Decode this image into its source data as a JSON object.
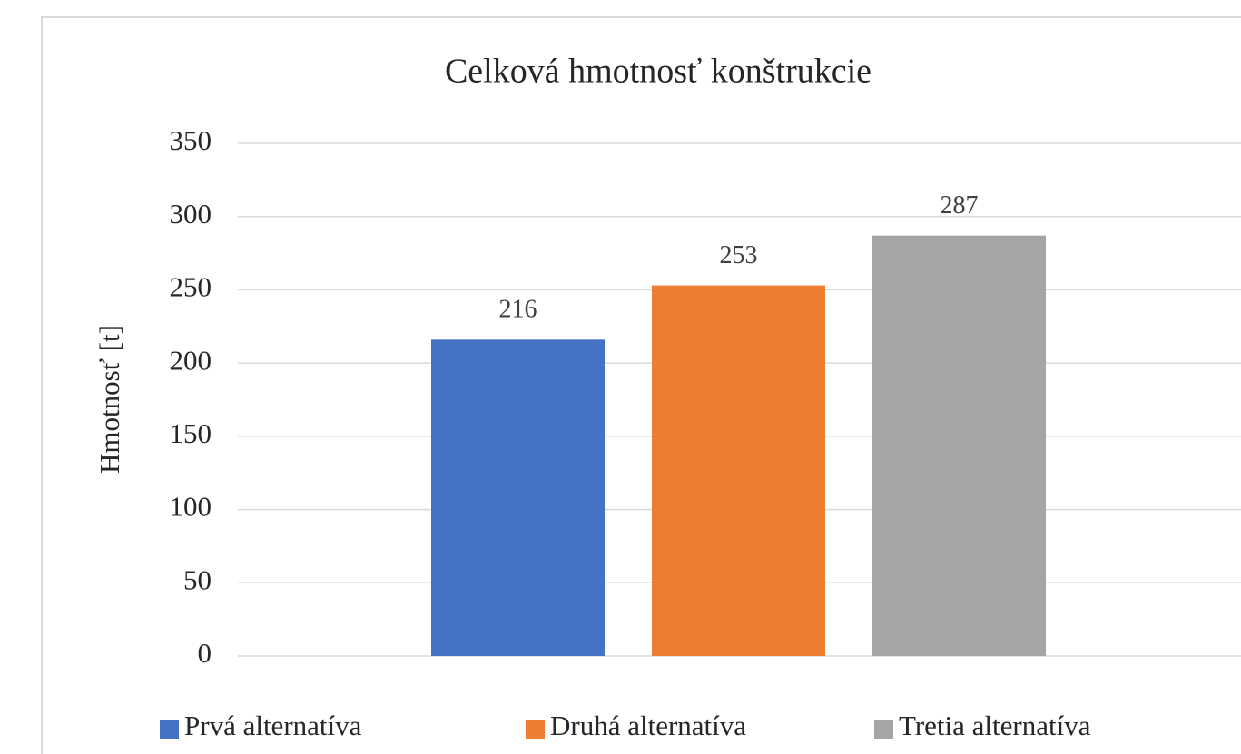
{
  "chart_data": {
    "type": "bar",
    "title": "Celková hmotnosť konštrukcie",
    "ylabel": "Hmotnosť [t]",
    "categories": [
      null
    ],
    "series": [
      {
        "name": "Prvá alternatíva",
        "color": "#4472c4",
        "values": [
          216
        ]
      },
      {
        "name": "Druhá alternatíva",
        "color": "#ed7d31",
        "values": [
          253
        ]
      },
      {
        "name": "Tretia alternatíva",
        "color": "#a5a5a5",
        "values": [
          287
        ]
      }
    ],
    "ylim": [
      0,
      350
    ],
    "yticks": [
      0,
      50,
      100,
      150,
      200,
      250,
      300,
      350
    ],
    "grid": true,
    "legend": "bottom",
    "data_labels": true
  }
}
